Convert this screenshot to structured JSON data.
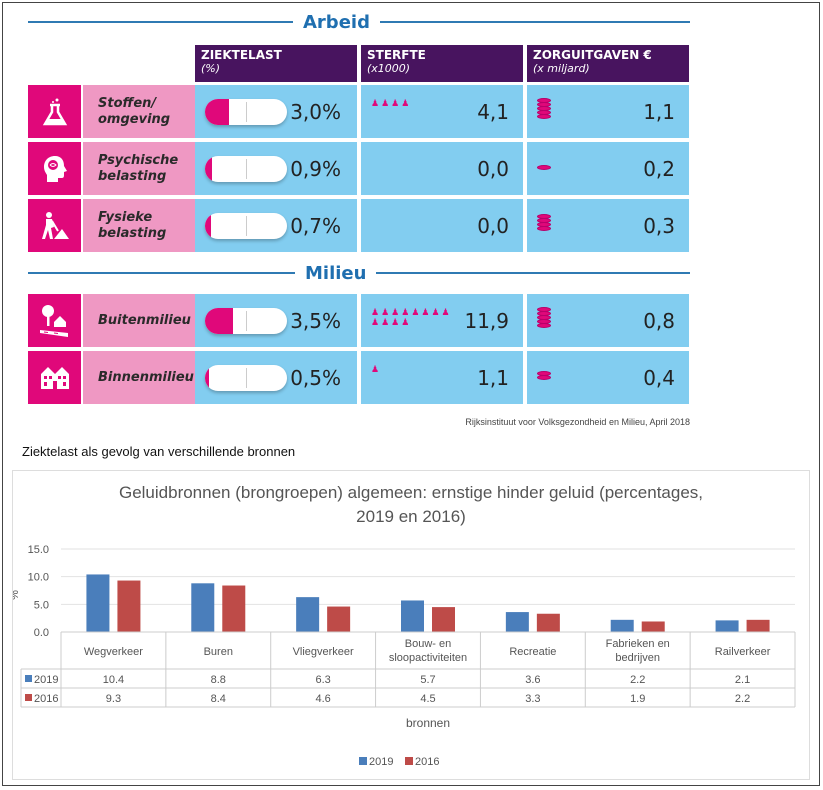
{
  "infographic": {
    "sections": [
      {
        "title": "Arbeid"
      },
      {
        "title": "Milieu"
      }
    ],
    "columns": [
      {
        "title": "ZIEKTELAST",
        "subtitle": "(%)"
      },
      {
        "title": "STERFTE",
        "subtitle": "(x1000)"
      },
      {
        "title": "ZORGUITGAVEN €",
        "subtitle": "(x miljard)"
      }
    ],
    "rows": [
      {
        "section": "Arbeid",
        "icon": "flask-icon",
        "label": "Stoffen/ omgeving",
        "ziektelast": "3,0%",
        "ziektelast_value": 3.0,
        "sterfte": "4,1",
        "sterfte_icons": 4,
        "zorguitgaven": "1,1",
        "coins": 5
      },
      {
        "section": "Arbeid",
        "icon": "brain-head-icon",
        "label": "Psychische belasting",
        "ziektelast": "0,9%",
        "ziektelast_value": 0.9,
        "sterfte": "0,0",
        "sterfte_icons": 0,
        "zorguitgaven": "0,2",
        "coins": 1
      },
      {
        "section": "Arbeid",
        "icon": "worker-shovel-icon",
        "label": "Fysieke belasting",
        "ziektelast": "0,7%",
        "ziektelast_value": 0.7,
        "sterfte": "0,0",
        "sterfte_icons": 0,
        "zorguitgaven": "0,3",
        "coins": 4
      },
      {
        "section": "Milieu",
        "icon": "tree-house-road-icon",
        "label": "Buitenmilieu",
        "ziektelast": "3,5%",
        "ziektelast_value": 3.5,
        "sterfte": "11,9",
        "sterfte_icons": 12,
        "zorguitgaven": "0,8",
        "coins": 5
      },
      {
        "section": "Milieu",
        "icon": "houses-icon",
        "label": "Binnenmilieu",
        "ziektelast": "0,5%",
        "ziektelast_value": 0.5,
        "sterfte": "1,1",
        "sterfte_icons": 1,
        "zorguitgaven": "0,4",
        "coins": 2
      }
    ],
    "source": "Rijksinstituut voor Volksgezondheid en Milieu, April 2018",
    "colors": {
      "magenta": "#e0087a",
      "pink": "#ef98c3",
      "light_blue": "#82cdf0",
      "purple": "#48145f",
      "section_blue": "#1f6fb0"
    }
  },
  "caption": "Ziektelast als gevolg van verschillende bronnen",
  "chart_data": {
    "type": "bar",
    "title": "Geluidbronnen (brongroepen) algemeen: ernstige hinder geluid (percentages, 2019 en 2016)",
    "xlabel": "bronnen",
    "ylabel": "%",
    "ylim": [
      0,
      15
    ],
    "yticks": [
      "0.0",
      "5.0",
      "10.0",
      "15.0"
    ],
    "grid": true,
    "legend": "bottom",
    "categories": [
      "Wegverkeer",
      "Buren",
      "Vliegverkeer",
      "Bouw- en sloopactiviteiten",
      "Recreatie",
      "Fabrieken en bedrijven",
      "Railverkeer"
    ],
    "category_lines": [
      [
        "Wegverkeer"
      ],
      [
        "Buren"
      ],
      [
        "Vliegverkeer"
      ],
      [
        "Bouw- en",
        "sloopactiviteiten"
      ],
      [
        "Recreatie"
      ],
      [
        "Fabrieken en",
        "bedrijven"
      ],
      [
        "Railverkeer"
      ]
    ],
    "series": [
      {
        "name": "2019",
        "color": "#4a7ebb",
        "values": [
          10.4,
          8.8,
          6.3,
          5.7,
          3.6,
          2.2,
          2.1
        ],
        "labels": [
          "10.4",
          "8.8",
          "6.3",
          "5.7",
          "3.6",
          "2.2",
          "2.1"
        ]
      },
      {
        "name": "2016",
        "color": "#be4b48",
        "values": [
          9.3,
          8.4,
          4.6,
          4.5,
          3.3,
          1.9,
          2.2
        ],
        "labels": [
          "9.3",
          "8.4",
          "4.6",
          "4.5",
          "3.3",
          "1.9",
          "2.2"
        ]
      }
    ]
  }
}
